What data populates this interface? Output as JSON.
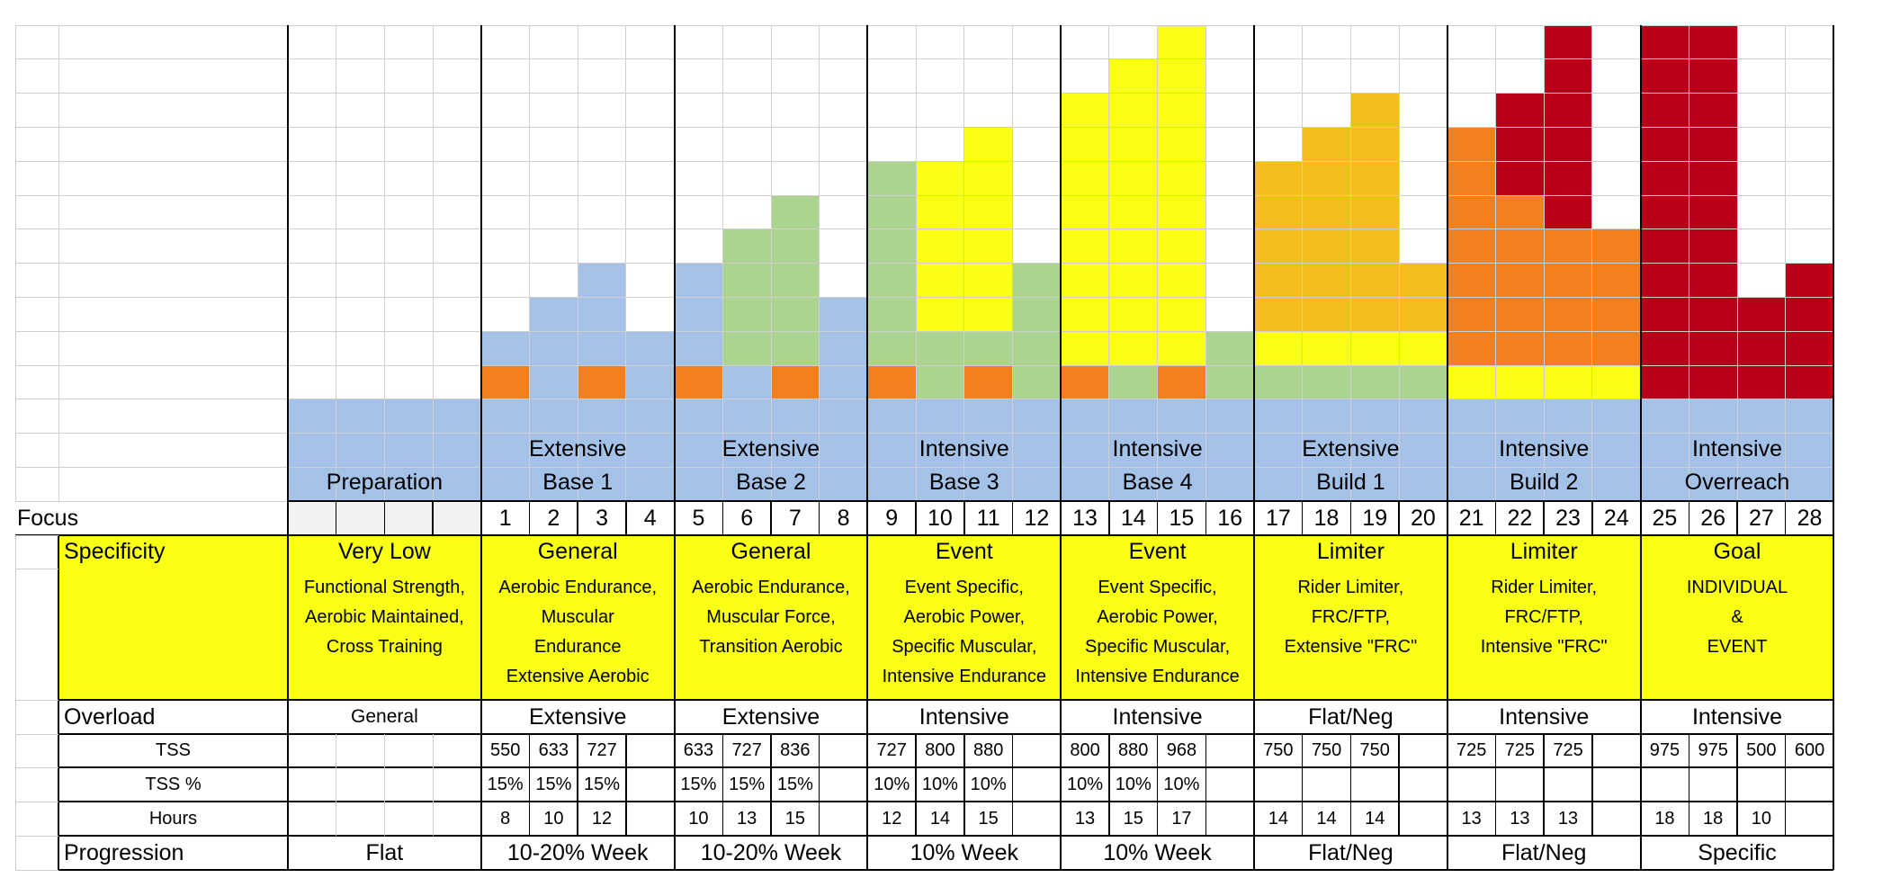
{
  "chart_data": {
    "type": "table",
    "row_labels": {
      "focus": "Focus",
      "specificity": "Specificity",
      "overload": "Overload",
      "tss": "TSS",
      "tss_pct": "TSS %",
      "hours": "Hours",
      "progression": "Progression"
    },
    "weeks": [
      "1",
      "2",
      "3",
      "4",
      "5",
      "6",
      "7",
      "8",
      "9",
      "10",
      "11",
      "12",
      "13",
      "14",
      "15",
      "16",
      "17",
      "18",
      "19",
      "20",
      "21",
      "22",
      "23",
      "24",
      "25",
      "26",
      "27",
      "28"
    ],
    "phases": [
      {
        "name": [
          "Preparation"
        ],
        "specificity": "Very Low",
        "description": [
          "Functional Strength,",
          "Aerobic Maintained,",
          "Cross Training"
        ],
        "overload": "General",
        "progression": "Flat"
      },
      {
        "name": [
          "Extensive",
          "Base 1"
        ],
        "specificity": "General",
        "description": [
          "Aerobic Endurance,",
          "Muscular",
          "Endurance",
          "Extensive Aerobic"
        ],
        "overload": "Extensive",
        "progression": "10-20% Week"
      },
      {
        "name": [
          "Extensive",
          "Base 2"
        ],
        "specificity": "General",
        "description": [
          "Aerobic Endurance,",
          "Muscular Force,",
          "Transition Aerobic"
        ],
        "overload": "Extensive",
        "progression": "10-20% Week"
      },
      {
        "name": [
          "Intensive",
          "Base 3"
        ],
        "specificity": "Event",
        "description": [
          "Event Specific,",
          "Aerobic Power,",
          "Specific Muscular,",
          "Intensive Endurance"
        ],
        "overload": "Intensive",
        "progression": "10% Week"
      },
      {
        "name": [
          "Intensive",
          "Base 4"
        ],
        "specificity": "Event",
        "description": [
          "Event Specific,",
          "Aerobic Power,",
          "Specific Muscular,",
          "Intensive Endurance"
        ],
        "overload": "Intensive",
        "progression": "10% Week"
      },
      {
        "name": [
          "Extensive",
          "Build 1"
        ],
        "specificity": "Limiter",
        "description": [
          "Rider Limiter,",
          "FRC/FTP,",
          "Extensive \"FRC\""
        ],
        "overload": "Flat/Neg",
        "progression": "Flat/Neg"
      },
      {
        "name": [
          "Intensive",
          "Build 2"
        ],
        "specificity": "Limiter",
        "description": [
          "Rider Limiter,",
          "FRC/FTP,",
          "Intensive \"FRC\""
        ],
        "overload": "Intensive",
        "progression": "Flat/Neg"
      },
      {
        "name": [
          "Intensive",
          "Overreach"
        ],
        "specificity": "Goal",
        "description": [
          "INDIVIDUAL",
          "&",
          "EVENT"
        ],
        "overload": "Intensive",
        "progression": "Specific"
      }
    ],
    "tss": [
      "550",
      "633",
      "727",
      "",
      "633",
      "727",
      "836",
      "",
      "727",
      "800",
      "880",
      "",
      "800",
      "880",
      "968",
      "",
      "750",
      "750",
      "750",
      "",
      "725",
      "725",
      "725",
      "",
      "975",
      "975",
      "500",
      "600"
    ],
    "tss_pct": [
      "15%",
      "15%",
      "15%",
      "",
      "15%",
      "15%",
      "15%",
      "",
      "10%",
      "10%",
      "10%",
      "",
      "10%",
      "10%",
      "10%",
      "",
      "",
      "",
      "",
      "",
      "",
      "",
      "",
      "",
      "",
      "",
      "",
      ""
    ],
    "hours": [
      "8",
      "10",
      "12",
      "",
      "10",
      "13",
      "15",
      "",
      "12",
      "14",
      "15",
      "",
      "13",
      "15",
      "17",
      "",
      "14",
      "14",
      "14",
      "",
      "13",
      "13",
      "13",
      "",
      "18",
      "18",
      "10",
      ""
    ],
    "colors": {
      "base": "#a4c2e7",
      "green": "#acd491",
      "yellow": "#faff16",
      "gold": "#f6be1d",
      "orange": "#f2801d",
      "red": "#ba0018",
      "highlight": "#faff16",
      "prep_cells": "#f2f2f2"
    },
    "block_stack": [
      {
        "week": "1",
        "segments": [
          [
            "base",
            1
          ],
          [
            "orange",
            1
          ],
          [
            "base",
            1
          ]
        ]
      },
      {
        "week": "2",
        "segments": [
          [
            "base",
            4
          ]
        ]
      },
      {
        "week": "3",
        "segments": [
          [
            "base",
            1
          ],
          [
            "orange",
            1
          ],
          [
            "base",
            3
          ]
        ]
      },
      {
        "week": "4",
        "segments": [
          [
            "base",
            3
          ]
        ]
      },
      {
        "week": "5",
        "segments": [
          [
            "base",
            1
          ],
          [
            "orange",
            1
          ],
          [
            "base",
            3
          ]
        ]
      },
      {
        "week": "6",
        "segments": [
          [
            "base",
            2
          ],
          [
            "green",
            4
          ]
        ]
      },
      {
        "week": "7",
        "segments": [
          [
            "base",
            1
          ],
          [
            "orange",
            1
          ],
          [
            "green",
            5
          ]
        ]
      },
      {
        "week": "8",
        "segments": [
          [
            "base",
            4
          ]
        ]
      },
      {
        "week": "9",
        "segments": [
          [
            "base",
            1
          ],
          [
            "orange",
            1
          ],
          [
            "green",
            6
          ]
        ]
      },
      {
        "week": "10",
        "segments": [
          [
            "base",
            1
          ],
          [
            "green",
            2
          ],
          [
            "yellow",
            5
          ]
        ]
      },
      {
        "week": "11",
        "segments": [
          [
            "base",
            1
          ],
          [
            "orange",
            1
          ],
          [
            "green",
            1
          ],
          [
            "yellow",
            6
          ]
        ]
      },
      {
        "week": "12",
        "segments": [
          [
            "base",
            1
          ],
          [
            "green",
            4
          ]
        ]
      },
      {
        "week": "13",
        "segments": [
          [
            "base",
            1
          ],
          [
            "orange",
            1
          ],
          [
            "yellow",
            8
          ]
        ]
      },
      {
        "week": "14",
        "segments": [
          [
            "base",
            1
          ],
          [
            "green",
            1
          ],
          [
            "yellow",
            9
          ]
        ]
      },
      {
        "week": "15",
        "segments": [
          [
            "base",
            1
          ],
          [
            "orange",
            1
          ],
          [
            "yellow",
            10
          ]
        ]
      },
      {
        "week": "16",
        "segments": [
          [
            "base",
            1
          ],
          [
            "green",
            2
          ]
        ]
      },
      {
        "week": "17",
        "segments": [
          [
            "base",
            1
          ],
          [
            "green",
            1
          ],
          [
            "yellow",
            1
          ],
          [
            "gold",
            5
          ]
        ]
      },
      {
        "week": "18",
        "segments": [
          [
            "base",
            1
          ],
          [
            "green",
            1
          ],
          [
            "yellow",
            1
          ],
          [
            "gold",
            6
          ]
        ]
      },
      {
        "week": "19",
        "segments": [
          [
            "base",
            1
          ],
          [
            "green",
            1
          ],
          [
            "yellow",
            1
          ],
          [
            "gold",
            7
          ]
        ]
      },
      {
        "week": "20",
        "segments": [
          [
            "base",
            1
          ],
          [
            "green",
            1
          ],
          [
            "yellow",
            1
          ],
          [
            "gold",
            2
          ]
        ]
      },
      {
        "week": "21",
        "segments": [
          [
            "base",
            1
          ],
          [
            "yellow",
            1
          ],
          [
            "orange",
            7
          ]
        ]
      },
      {
        "week": "22",
        "segments": [
          [
            "base",
            1
          ],
          [
            "yellow",
            1
          ],
          [
            "orange",
            5
          ],
          [
            "red",
            3
          ]
        ]
      },
      {
        "week": "23",
        "segments": [
          [
            "base",
            1
          ],
          [
            "yellow",
            1
          ],
          [
            "orange",
            4
          ],
          [
            "red",
            6
          ]
        ]
      },
      {
        "week": "24",
        "segments": [
          [
            "base",
            1
          ],
          [
            "yellow",
            1
          ],
          [
            "orange",
            4
          ]
        ]
      },
      {
        "week": "25",
        "segments": [
          [
            "base",
            1
          ],
          [
            "red",
            11
          ]
        ]
      },
      {
        "week": "26",
        "segments": [
          [
            "base",
            1
          ],
          [
            "red",
            11
          ]
        ]
      },
      {
        "week": "27",
        "segments": [
          [
            "base",
            1
          ],
          [
            "red",
            3
          ]
        ]
      },
      {
        "week": "28",
        "segments": [
          [
            "base",
            1
          ],
          [
            "red",
            4
          ]
        ]
      }
    ]
  }
}
